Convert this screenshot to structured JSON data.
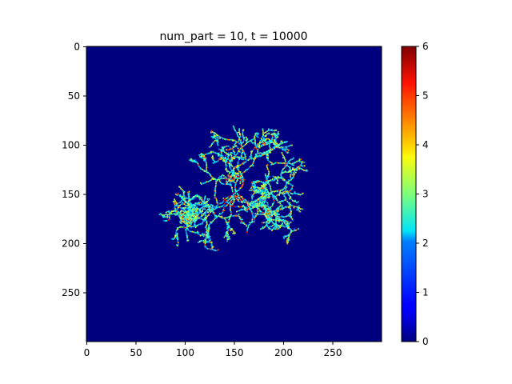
{
  "chart_data": {
    "type": "heatmap",
    "title": "num_part = 10, t = 10000",
    "xlabel": "",
    "ylabel": "",
    "grid_size": [
      300,
      300
    ],
    "xlim": [
      0,
      300
    ],
    "ylim": [
      300,
      0
    ],
    "x_ticks": [
      0,
      50,
      100,
      150,
      200,
      250
    ],
    "y_ticks": [
      0,
      50,
      100,
      150,
      200,
      250
    ],
    "colormap": "jet",
    "colorbar": {
      "min": 0,
      "max": 6,
      "ticks": [
        0,
        1,
        2,
        3,
        4,
        5,
        6
      ]
    },
    "background_value": 0,
    "cluster": {
      "description_values": "diffusion-limited aggregate of nonzero cells (values 1-6) centered near (150,150)",
      "center": [
        150,
        150
      ],
      "approx_extent": {
        "x": [
          72,
          220
        ],
        "y": [
          75,
          225
        ]
      }
    }
  }
}
